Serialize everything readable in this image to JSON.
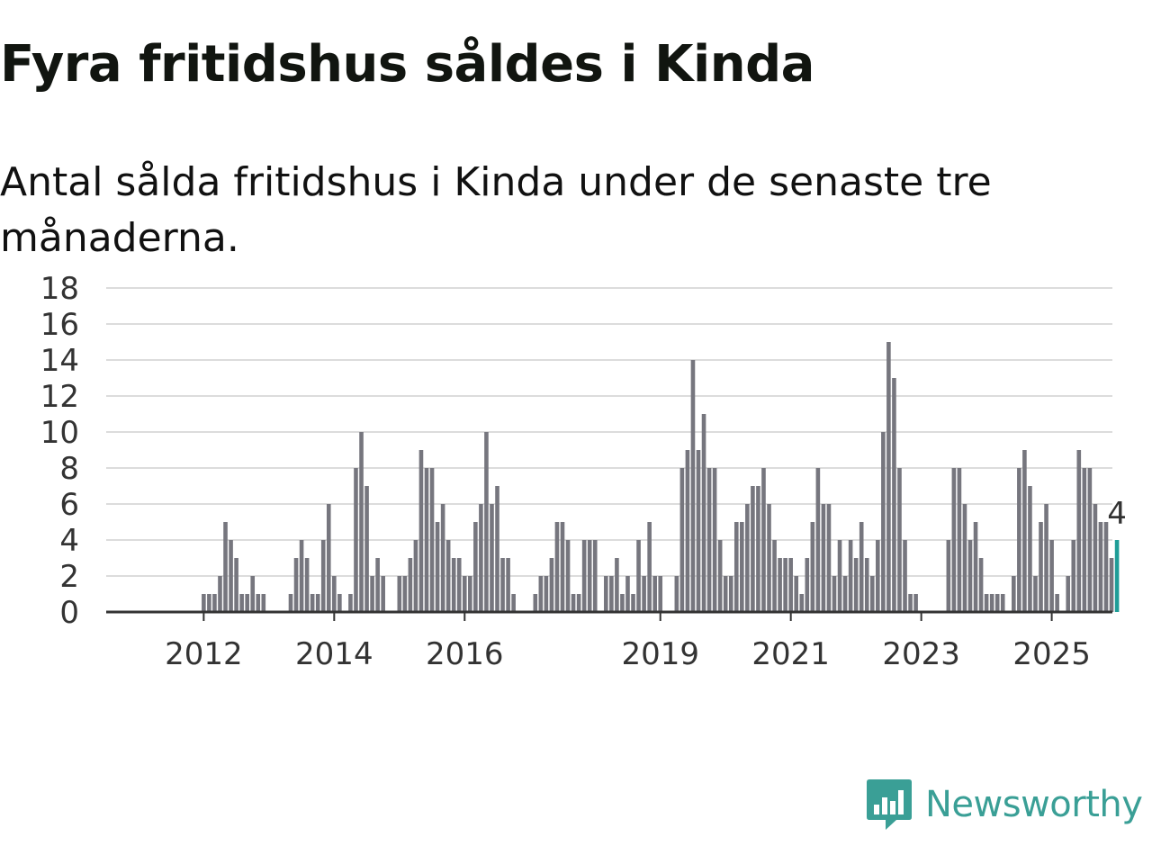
{
  "title": "Fyra fritidshus såldes i Kinda",
  "subtitle": "Antal sålda fritidshus i Kinda under de senaste tre månaderna.",
  "brand": {
    "name": "Newsworthy",
    "color": "#3a9f96"
  },
  "colors": {
    "bar": "#76767e",
    "highlight": "#1e9d97",
    "grid": "#dcdcdc",
    "axis": "#333333"
  },
  "chart_data": {
    "type": "bar",
    "title": "Fyra fritidshus såldes i Kinda",
    "xlabel": "",
    "ylabel": "",
    "ylim": [
      0,
      18
    ],
    "y_ticks": [
      0,
      2,
      4,
      6,
      8,
      10,
      12,
      14,
      16,
      18
    ],
    "x_ticks": [
      {
        "label": "2012",
        "index": 9
      },
      {
        "label": "2014",
        "index": 33
      },
      {
        "label": "2016",
        "index": 57
      },
      {
        "label": "2019",
        "index": 93
      },
      {
        "label": "2021",
        "index": 117
      },
      {
        "label": "2023",
        "index": 141
      },
      {
        "label": "2025",
        "index": 165
      }
    ],
    "period": "monthly, first bar = January 2011",
    "values": [
      0,
      0,
      0,
      0,
      0,
      0,
      0,
      0,
      0,
      1,
      1,
      1,
      2,
      5,
      4,
      3,
      1,
      1,
      2,
      1,
      1,
      0,
      0,
      0,
      0,
      1,
      3,
      4,
      3,
      1,
      1,
      4,
      6,
      2,
      1,
      0,
      1,
      8,
      10,
      7,
      2,
      3,
      2,
      0,
      0,
      2,
      2,
      3,
      4,
      9,
      8,
      8,
      5,
      6,
      4,
      3,
      3,
      2,
      2,
      5,
      6,
      10,
      6,
      7,
      3,
      3,
      1,
      0,
      0,
      0,
      1,
      2,
      2,
      3,
      5,
      5,
      4,
      1,
      1,
      4,
      4,
      4,
      0,
      2,
      2,
      3,
      1,
      2,
      1,
      4,
      2,
      5,
      2,
      2,
      0,
      0,
      2,
      8,
      9,
      14,
      9,
      11,
      8,
      8,
      4,
      2,
      2,
      5,
      5,
      6,
      7,
      7,
      8,
      6,
      4,
      3,
      3,
      3,
      2,
      1,
      3,
      5,
      8,
      6,
      6,
      2,
      4,
      2,
      4,
      3,
      5,
      3,
      2,
      4,
      10,
      15,
      13,
      8,
      4,
      1,
      1,
      0,
      0,
      0,
      0,
      0,
      4,
      8,
      8,
      6,
      4,
      5,
      3,
      1,
      1,
      1,
      1,
      0,
      2,
      8,
      9,
      7,
      2,
      5,
      6,
      4,
      1,
      0,
      2,
      4,
      9,
      8,
      8,
      6,
      5,
      5,
      3,
      4
    ],
    "highlight": {
      "index": 177,
      "value": 4,
      "label": "4"
    }
  }
}
